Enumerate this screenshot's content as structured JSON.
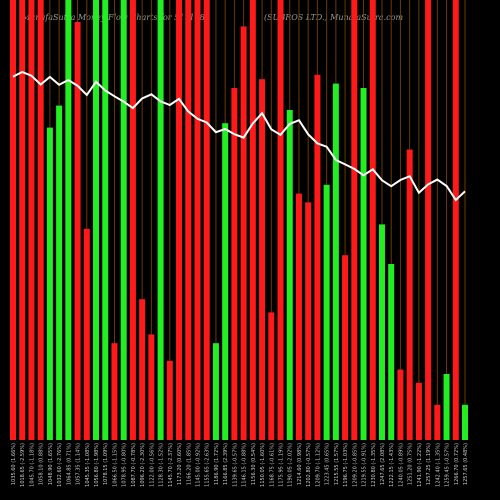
{
  "header": {
    "left": "MunafaSutra Money Flow  Charts for 517168",
    "right": "(SUBROS LTD.) MunafaSutra.com"
  },
  "chart_data": {
    "type": "bar",
    "title": "MunafaSutra Money Flow  Charts for 517168",
    "subtitle": "(SUBROS LTD.) MunafaSutra.com",
    "ylim": [
      0,
      100
    ],
    "grid": false,
    "categories": [
      "1035.60 (1.66%) ",
      "1018.65 (-2.59%) ",
      "1045.70 (-1.18%) ",
      "1058.10 (0.88%) ",
      "1048.90 (1.65%) ",
      "1032.60 (-2.76%) ",
      "1064.85 (0.71%) ",
      "1057.35 (1.14%) ",
      "1045.35 (-1.08%) ",
      "1056.80 (-1.98%) ",
      "1078.15 (1.09%) ",
      "1066.50 (-1.15%) ",
      "1078.95 (-0.80%) ",
      "1087.70 (-0.78%) ",
      "1096.20 (-2.30%) ",
      "1122.00 (-0.56%) ",
      "1128.30 (-1.52%) ",
      "1145.70 (-2.37%) ",
      "1173.20 (0.60%) ",
      "1166.20 (1.85%) ",
      "1145.00 (-0.92%) ",
      "1155.65 (-2.63%) ",
      "1186.90 (1.72%) ",
      "1166.85 (2.39%) ",
      "1139.65 (-0.57%) ",
      "1146.15 (-0.88%) ",
      "1156.30 (0.54%) ",
      "1150.05 (-1.60%) ",
      "1168.75 (-0.61%) ",
      "1175.95 (-1.19%) ",
      "1190.05 (-2.02%) ",
      "1214.60 (0.98%) ",
      "1202.80 (-0.57%) ",
      "1209.70 (-1.12%) ",
      "1223.45 (0.65%) ",
      "1215.55 (1.57%) ",
      "1196.75 (-1.03%) ",
      "1209.20 (-0.85%) ",
      "1219.55 (-0.91%) ",
      "1230.80 (-1.35%) ",
      "1247.65 (2.08%) ",
      "1222.15 (-1.43%) ",
      "1240.05 (-0.89%) ",
      "1251.20 (0.75%) ",
      "1241.90 (-1.22%) ",
      "1257.25 (1.19%) ",
      "1242.40 (-1.35%) ",
      "1259.45 (-0.57%) ",
      "1266.70 (0.72%) ",
      "1257.65 (0.48%) "
    ],
    "series": [
      {
        "colors": [
          "red",
          "red",
          "red",
          "red",
          "green",
          "green",
          "green",
          "red",
          "red",
          "green",
          "green",
          "red",
          "green",
          "red",
          "red",
          "red",
          "green",
          "red",
          "red",
          "red",
          "red",
          "red",
          "green",
          "green",
          "red",
          "red",
          "red",
          "red",
          "red",
          "red",
          "green",
          "red",
          "red",
          "red",
          "green",
          "green",
          "red",
          "red",
          "green",
          "red",
          "green",
          "green",
          "red",
          "red",
          "red",
          "red",
          "red",
          "green",
          "red",
          "green"
        ],
        "values": [
          100,
          100,
          100,
          100,
          71,
          76,
          100,
          95,
          48,
          100,
          100,
          22,
          100,
          100,
          32,
          24,
          100,
          18,
          100,
          100,
          100,
          100,
          22,
          72,
          80,
          94,
          100,
          82,
          29,
          100,
          75,
          56,
          54,
          83,
          58,
          81,
          42,
          100,
          80,
          100,
          49,
          40,
          16,
          66,
          13,
          100,
          8,
          15,
          100,
          8
        ]
      }
    ],
    "line": {
      "label": "price",
      "values": [
        1035.6,
        1018.65,
        1045.7,
        1058.1,
        1048.9,
        1032.6,
        1064.85,
        1057.35,
        1045.35,
        1056.8,
        1078.15,
        1066.5,
        1078.95,
        1087.7,
        1096.2,
        1122.0,
        1128.3,
        1145.7,
        1173.2,
        1166.2,
        1145.0,
        1155.65,
        1186.9,
        1166.85,
        1139.65,
        1146.15,
        1156.3,
        1150.05,
        1168.75,
        1175.95,
        1190.05,
        1214.6,
        1202.8,
        1209.7,
        1223.45,
        1215.55,
        1196.75,
        1209.2,
        1219.55,
        1230.8,
        1247.65,
        1222.15,
        1240.05,
        1251.2,
        1241.9,
        1257.25,
        1242.4,
        1259.45,
        1266.7,
        1257.65
      ],
      "reversed": true
    }
  }
}
